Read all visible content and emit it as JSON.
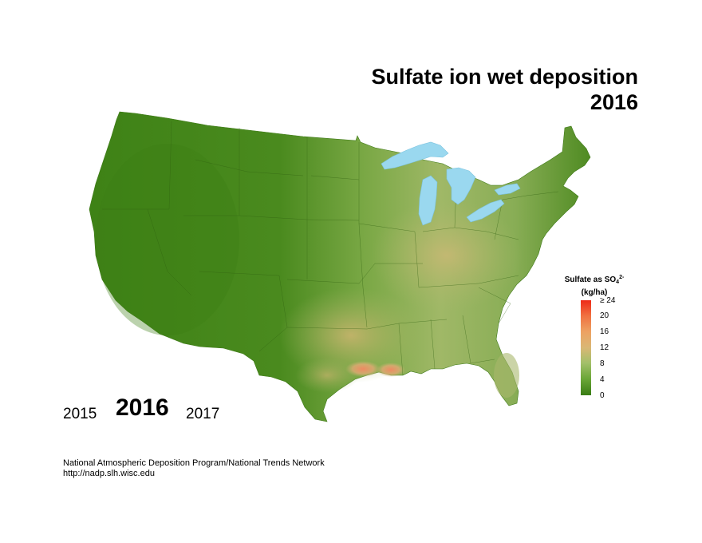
{
  "header": {
    "title_line1": "Sulfate ion wet deposition",
    "title_line2": "2016"
  },
  "legend": {
    "title_main": "Sulfate as SO",
    "title_sub": "4",
    "title_sup": "2-",
    "units": "(kg/ha)",
    "ticks": [
      "≥ 24",
      "20",
      "16",
      "12",
      "8",
      "4",
      "0"
    ],
    "colors": {
      "low": "#3a7d14",
      "mid": "#d9b775",
      "high": "#ee2b18",
      "water": "#9ad8ef"
    }
  },
  "years": {
    "previous": "2015",
    "current": "2016",
    "next": "2017"
  },
  "credits": {
    "line1": "National Atmospheric Deposition Program/National Trends Network",
    "line2": "http://nadp.slh.wisc.edu"
  }
}
